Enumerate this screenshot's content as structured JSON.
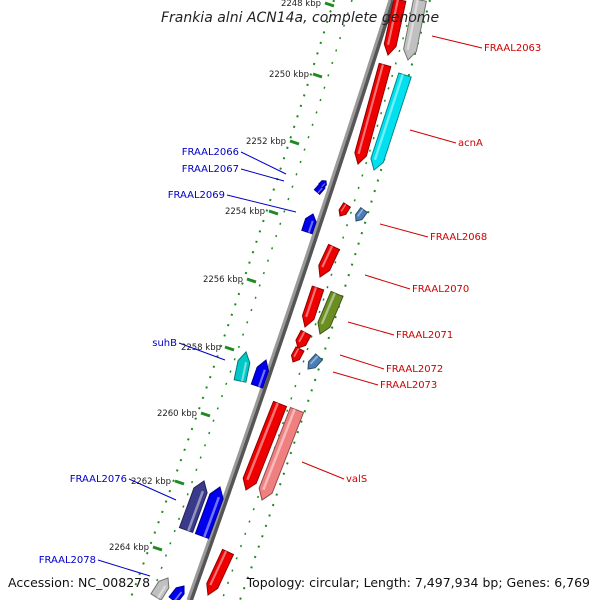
{
  "title": "Frankia alni ACN14a, complete genome",
  "accession": "Accession: NC_008278",
  "summary": "Topology: circular; Length: 7,497,934 bp; Genes: 6,769",
  "ruler": [
    {
      "label": "2248 kbp"
    },
    {
      "label": "2250 kbp"
    },
    {
      "label": "2252 kbp"
    },
    {
      "label": "2254 kbp"
    },
    {
      "label": "2256 kbp"
    },
    {
      "label": "2258 kbp"
    },
    {
      "label": "2260 kbp"
    },
    {
      "label": "2262 kbp"
    },
    {
      "label": "2264 kbp"
    }
  ],
  "colors": {
    "plus_label": "#d00000",
    "minus_label": "#0000c8",
    "backbone": "#8c8c8c",
    "tick": "#1f8a1f"
  },
  "labels_plus": [
    {
      "text": "FRAAL2063"
    },
    {
      "text": "acnA"
    },
    {
      "text": "FRAAL2068"
    },
    {
      "text": "FRAAL2070"
    },
    {
      "text": "FRAAL2071"
    },
    {
      "text": "FRAAL2072"
    },
    {
      "text": "FRAAL2073"
    },
    {
      "text": "valS"
    }
  ],
  "labels_minus": [
    {
      "text": "FRAAL2066"
    },
    {
      "text": "FRAAL2067"
    },
    {
      "text": "FRAAL2069"
    },
    {
      "text": "suhB"
    },
    {
      "text": "FRAAL2076"
    },
    {
      "text": "FRAAL2078"
    }
  ]
}
